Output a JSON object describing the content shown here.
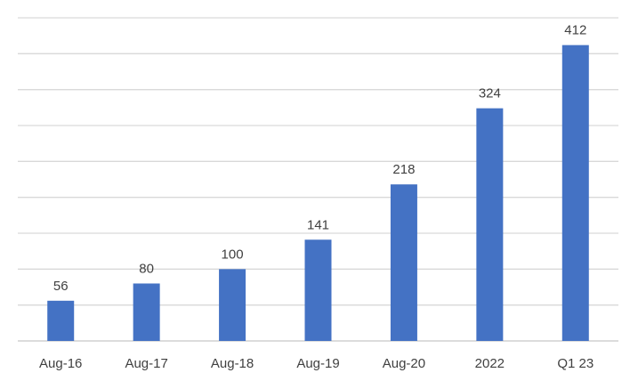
{
  "chart_data": {
    "type": "bar",
    "categories": [
      "Aug-16",
      "Aug-17",
      "Aug-18",
      "Aug-19",
      "Aug-20",
      "2022",
      "Q1 23"
    ],
    "values": [
      56,
      80,
      100,
      141,
      218,
      324,
      412
    ],
    "ylim": [
      0,
      450
    ],
    "grid": true,
    "legend": "none",
    "colors": {
      "bar": "#4472c4",
      "gridline": "#d9d9d9",
      "text": "#404040"
    }
  }
}
